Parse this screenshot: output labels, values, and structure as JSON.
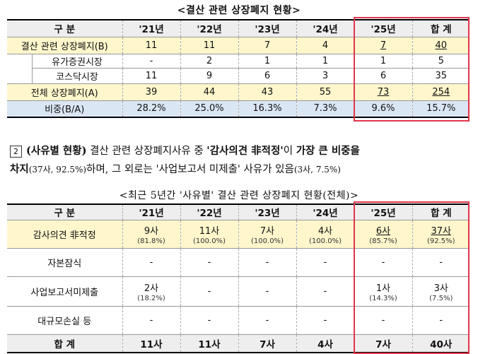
{
  "table1": {
    "title": "<결산 관련 상장폐지 현황>",
    "headers": [
      "구 분",
      "'21년",
      "'22년",
      "'23년",
      "'24년",
      "'25년",
      "합 계"
    ],
    "row_total_delist_settle": {
      "label": "결산 관련 상장폐지(B)",
      "values": [
        "11",
        "11",
        "7",
        "4",
        "7",
        "40"
      ]
    },
    "row_kospi": {
      "label": "유가증권시장",
      "values": [
        "-",
        "2",
        "1",
        "1",
        "1",
        "5"
      ]
    },
    "row_kosdaq": {
      "label": "코스닥시장",
      "values": [
        "11",
        "9",
        "6",
        "3",
        "6",
        "35"
      ]
    },
    "row_all": {
      "label": "전체 상장폐지(A)",
      "values": [
        "39",
        "44",
        "43",
        "55",
        "73",
        "254"
      ]
    },
    "row_ratio": {
      "label": "비중(B/A)",
      "values": [
        "28.2%",
        "25.0%",
        "16.3%",
        "7.3%",
        "9.6%",
        "15.7%"
      ]
    }
  },
  "paragraph": {
    "marker": "2",
    "bold_lead": "(사유별 현황)",
    "text1": " 결산 관련 상장폐지사유 중 ",
    "bold_quote": "'감사의견 非적정'",
    "text2": "이 ",
    "bold_tail": "가장 큰 비중을",
    "line2_bold": "차지",
    "line2_small1": "(37사, 92.5%)",
    "line2_text": "하며, 그 외로는 '사업보고서 미제출' 사유가 있음",
    "line2_small2": "(3사, 7.5%)"
  },
  "table2": {
    "title": "<최근 5년간 '사유별' 결산 관련 상장폐지 현황(전체)>",
    "headers": [
      "구 분",
      "'21년",
      "'22년",
      "'23년",
      "'24년",
      "'25년",
      "합 계"
    ],
    "row_audit": {
      "label": "감사의견 非적정",
      "values": [
        "9사",
        "11사",
        "7사",
        "4사",
        "6사",
        "37사"
      ],
      "pcts": [
        "(81.8%)",
        "(100.0%)",
        "(100.0%)",
        "(100.0%)",
        "(85.7%)",
        "(92.5%)"
      ]
    },
    "row_capital": {
      "label": "자본잠식",
      "values": [
        "-",
        "-",
        "-",
        "-",
        "-",
        "-"
      ]
    },
    "row_report": {
      "label": "사업보고서미제출",
      "values": [
        "2사",
        "-",
        "-",
        "-",
        "1사",
        "3사"
      ],
      "pcts": [
        "(18.2%)",
        "",
        "",
        "",
        "(14.3%)",
        "(7.5%)"
      ]
    },
    "row_loss": {
      "label": "대규모손실 등",
      "values": [
        "-",
        "-",
        "-",
        "-",
        "-",
        "-"
      ]
    },
    "row_sum": {
      "label": "합 계",
      "values": [
        "11사",
        "11사",
        "7사",
        "4사",
        "7사",
        "40사"
      ]
    }
  },
  "colors": {
    "header_bg": "#eeeeee",
    "highlight_yellow": "#fff6cc",
    "highlight_blue": "#dbe6f5",
    "red_box": "#e0344a"
  }
}
